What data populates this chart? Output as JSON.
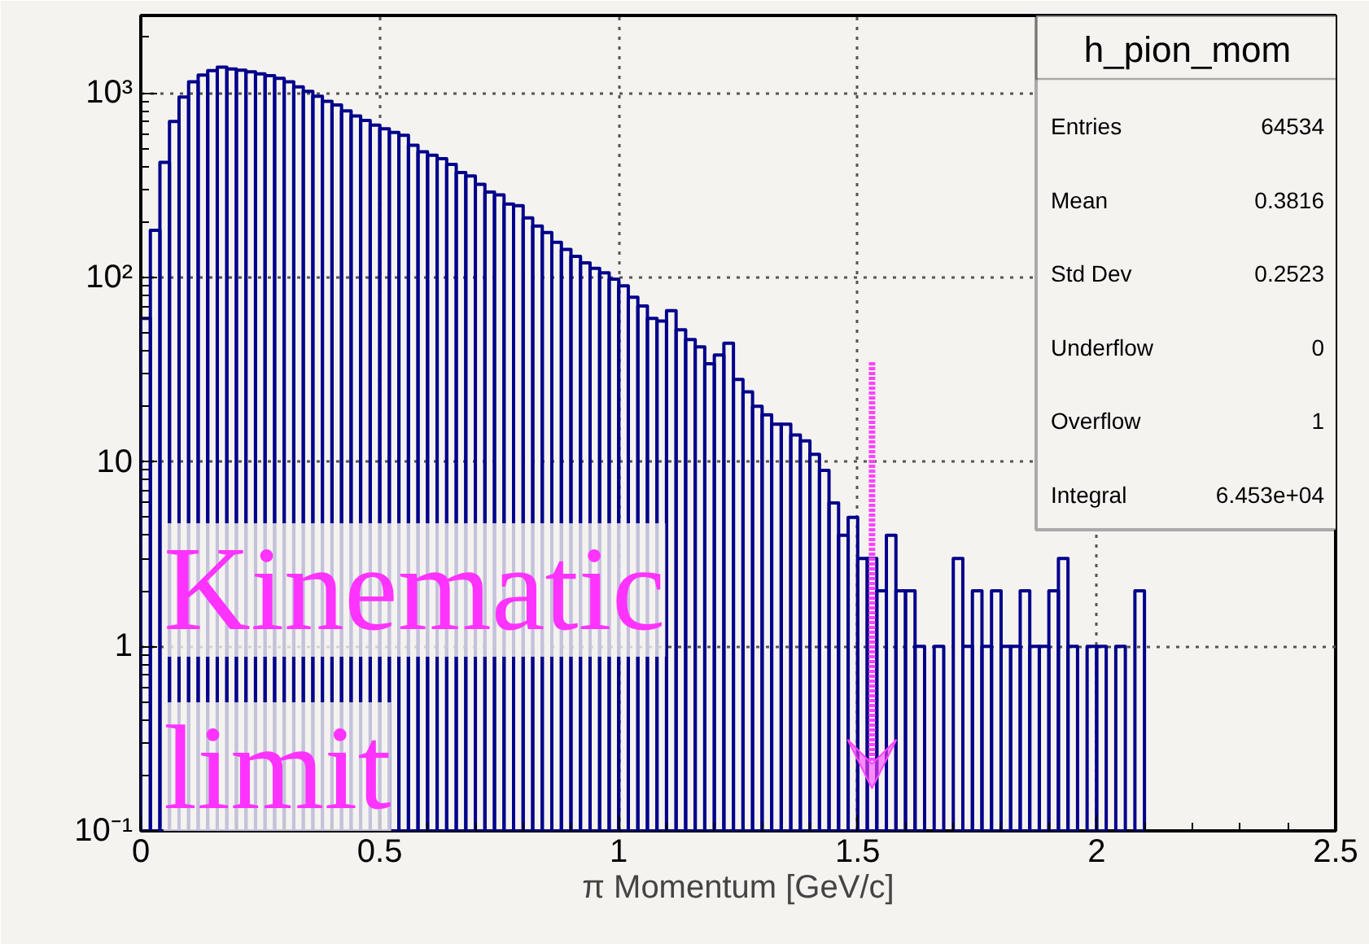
{
  "chart_data": {
    "type": "histogram",
    "xlabel": "π Momentum [GeV/c]",
    "bins": [
      0.0,
      0.02,
      0.04,
      0.06,
      0.08,
      0.1,
      0.12,
      0.14,
      0.16,
      0.18,
      0.2,
      0.22,
      0.24,
      0.26,
      0.28,
      0.3,
      0.32,
      0.34,
      0.36,
      0.38,
      0.4,
      0.42,
      0.44,
      0.46,
      0.48,
      0.5,
      0.52,
      0.54,
      0.56,
      0.58,
      0.6,
      0.62,
      0.64,
      0.66,
      0.68,
      0.7,
      0.72,
      0.74,
      0.76,
      0.78,
      0.8,
      0.82,
      0.84,
      0.86,
      0.88,
      0.9,
      0.92,
      0.94,
      0.96,
      0.98,
      1.0,
      1.02,
      1.04,
      1.06,
      1.08,
      1.1,
      1.12,
      1.14,
      1.16,
      1.18,
      1.2,
      1.22,
      1.24,
      1.26,
      1.28,
      1.3,
      1.32,
      1.34,
      1.36,
      1.38,
      1.4,
      1.42,
      1.44,
      1.46,
      1.48,
      1.5,
      1.52,
      1.54,
      1.56,
      1.58,
      1.6,
      1.62,
      1.64,
      1.66,
      1.68,
      1.7,
      1.72,
      1.74,
      1.76,
      1.78,
      1.8,
      1.82,
      1.84,
      1.86,
      1.88,
      1.9,
      1.92,
      1.94,
      1.96,
      1.98,
      2.0,
      2.02,
      2.04,
      2.06,
      2.08,
      2.1,
      2.12,
      2.14,
      2.16,
      2.18,
      2.2,
      2.22,
      2.24,
      2.26,
      2.28,
      2.3,
      2.32,
      2.34,
      2.36,
      2.38,
      2.4,
      2.42,
      2.44,
      2.46,
      2.48,
      2.5
    ],
    "values": [
      60,
      180,
      420,
      700,
      950,
      1150,
      1250,
      1320,
      1380,
      1350,
      1330,
      1300,
      1270,
      1240,
      1200,
      1150,
      1080,
      1020,
      960,
      900,
      860,
      800,
      750,
      710,
      670,
      640,
      610,
      590,
      520,
      480,
      460,
      440,
      410,
      370,
      355,
      320,
      290,
      280,
      250,
      245,
      210,
      190,
      175,
      155,
      142,
      130,
      120,
      112,
      106,
      98,
      90,
      78,
      70,
      60,
      58,
      66,
      52,
      46,
      42,
      34,
      38,
      44,
      28,
      24,
      20,
      18,
      16,
      16,
      14,
      13,
      11,
      9,
      6,
      4,
      5,
      3,
      3,
      2,
      4,
      2,
      2,
      1,
      null,
      1,
      null,
      3,
      1,
      2,
      1,
      2,
      1,
      1,
      2,
      1,
      1,
      2,
      3,
      1,
      null,
      1,
      1,
      null,
      1,
      null,
      2,
      null,
      null,
      null,
      null,
      null,
      null,
      null,
      null,
      null,
      null,
      null,
      null,
      null,
      null,
      null,
      null,
      null,
      null,
      null,
      null
    ],
    "color": "#00008b",
    "log": "y",
    "xlim": [
      0,
      2.5
    ],
    "ylim": [
      0.1,
      2630
    ],
    "xticks": [
      0,
      0.5,
      1,
      1.5,
      2,
      2.5
    ],
    "yticks": [
      {
        "value": 0.1,
        "label": "10⁻¹"
      },
      1,
      10,
      {
        "value": 100,
        "label": "10²"
      },
      {
        "value": 1000,
        "label": "10³"
      }
    ],
    "grid": true,
    "annotations": [
      "h_pion_mom",
      "Entries",
      "64534",
      "Mean",
      "0.3816",
      "Std Dev",
      "0.2523",
      "Underflow",
      "0",
      "Overflow",
      "1",
      "Integral",
      "6.453e+04",
      {
        "text": "Kinematic limit",
        "x": 1.53,
        "y": 0.17
      }
    ]
  }
}
